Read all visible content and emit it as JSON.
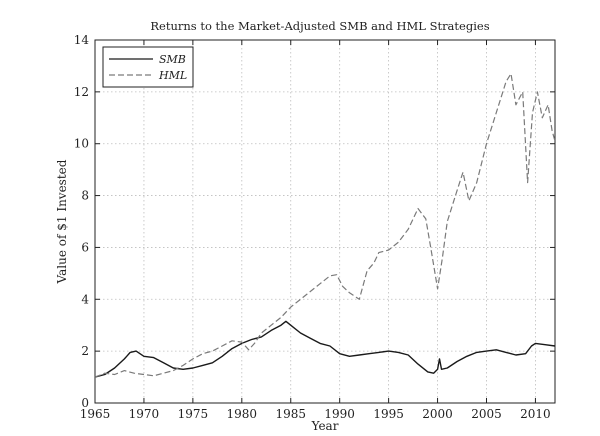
{
  "chart_data": {
    "type": "line",
    "title": "Returns to the Market-Adjusted SMB and HML Strategies",
    "xlabel": "Year",
    "ylabel": "Value of $1 Invested",
    "xlim": [
      1965,
      2012
    ],
    "ylim": [
      0,
      14
    ],
    "xticks": [
      1965,
      1970,
      1975,
      1980,
      1985,
      1990,
      1995,
      2000,
      2005,
      2010
    ],
    "yticks": [
      0,
      2,
      4,
      6,
      8,
      10,
      12,
      14
    ],
    "grid": true,
    "legend_position": "top-left",
    "series": [
      {
        "name": "SMB",
        "style": "solid",
        "color": "#1a1a1a",
        "points": [
          [
            1965.0,
            1.0
          ],
          [
            1966.0,
            1.1
          ],
          [
            1967.0,
            1.35
          ],
          [
            1968.0,
            1.7
          ],
          [
            1968.6,
            1.95
          ],
          [
            1969.2,
            2.0
          ],
          [
            1970.0,
            1.8
          ],
          [
            1971.0,
            1.75
          ],
          [
            1972.0,
            1.55
          ],
          [
            1973.0,
            1.35
          ],
          [
            1974.0,
            1.3
          ],
          [
            1975.0,
            1.35
          ],
          [
            1976.0,
            1.45
          ],
          [
            1977.0,
            1.55
          ],
          [
            1978.0,
            1.8
          ],
          [
            1979.0,
            2.1
          ],
          [
            1980.0,
            2.3
          ],
          [
            1981.0,
            2.45
          ],
          [
            1982.0,
            2.55
          ],
          [
            1983.0,
            2.8
          ],
          [
            1984.0,
            3.0
          ],
          [
            1984.5,
            3.15
          ],
          [
            1985.0,
            3.0
          ],
          [
            1986.0,
            2.7
          ],
          [
            1987.0,
            2.5
          ],
          [
            1988.0,
            2.3
          ],
          [
            1989.0,
            2.2
          ],
          [
            1990.0,
            1.9
          ],
          [
            1991.0,
            1.8
          ],
          [
            1992.0,
            1.85
          ],
          [
            1993.0,
            1.9
          ],
          [
            1994.0,
            1.95
          ],
          [
            1995.0,
            2.0
          ],
          [
            1996.0,
            1.95
          ],
          [
            1997.0,
            1.85
          ],
          [
            1998.0,
            1.5
          ],
          [
            1999.0,
            1.2
          ],
          [
            1999.6,
            1.15
          ],
          [
            2000.0,
            1.3
          ],
          [
            2000.2,
            1.7
          ],
          [
            2000.4,
            1.3
          ],
          [
            2001.0,
            1.35
          ],
          [
            2002.0,
            1.6
          ],
          [
            2003.0,
            1.8
          ],
          [
            2004.0,
            1.95
          ],
          [
            2005.0,
            2.0
          ],
          [
            2006.0,
            2.05
          ],
          [
            2007.0,
            1.95
          ],
          [
            2008.0,
            1.85
          ],
          [
            2009.0,
            1.9
          ],
          [
            2009.6,
            2.2
          ],
          [
            2010.0,
            2.3
          ],
          [
            2011.0,
            2.25
          ],
          [
            2012.0,
            2.2
          ]
        ]
      },
      {
        "name": "HML",
        "style": "dashed",
        "color": "#7a7a7a",
        "points": [
          [
            1965.0,
            1.0
          ],
          [
            1966.0,
            1.15
          ],
          [
            1967.0,
            1.1
          ],
          [
            1968.0,
            1.25
          ],
          [
            1969.0,
            1.15
          ],
          [
            1970.0,
            1.1
          ],
          [
            1971.0,
            1.05
          ],
          [
            1972.0,
            1.15
          ],
          [
            1973.0,
            1.25
          ],
          [
            1974.0,
            1.45
          ],
          [
            1975.0,
            1.7
          ],
          [
            1976.0,
            1.9
          ],
          [
            1977.0,
            2.0
          ],
          [
            1978.0,
            2.2
          ],
          [
            1979.0,
            2.4
          ],
          [
            1980.0,
            2.35
          ],
          [
            1980.7,
            2.05
          ],
          [
            1981.3,
            2.3
          ],
          [
            1982.0,
            2.7
          ],
          [
            1983.0,
            3.0
          ],
          [
            1984.0,
            3.3
          ],
          [
            1985.0,
            3.7
          ],
          [
            1986.0,
            4.0
          ],
          [
            1987.0,
            4.3
          ],
          [
            1988.0,
            4.6
          ],
          [
            1989.0,
            4.9
          ],
          [
            1989.7,
            4.95
          ],
          [
            1990.3,
            4.5
          ],
          [
            1991.0,
            4.25
          ],
          [
            1992.0,
            4.0
          ],
          [
            1992.8,
            5.1
          ],
          [
            1993.5,
            5.4
          ],
          [
            1994.0,
            5.8
          ],
          [
            1995.0,
            5.9
          ],
          [
            1996.0,
            6.2
          ],
          [
            1997.0,
            6.7
          ],
          [
            1998.0,
            7.5
          ],
          [
            1998.8,
            7.1
          ],
          [
            1999.3,
            6.0
          ],
          [
            2000.0,
            4.4
          ],
          [
            2000.5,
            5.6
          ],
          [
            2001.0,
            7.0
          ],
          [
            2002.0,
            8.2
          ],
          [
            2002.6,
            8.9
          ],
          [
            2003.2,
            7.8
          ],
          [
            2004.0,
            8.5
          ],
          [
            2005.0,
            10.0
          ],
          [
            2006.0,
            11.2
          ],
          [
            2007.0,
            12.4
          ],
          [
            2007.5,
            12.7
          ],
          [
            2008.0,
            11.5
          ],
          [
            2008.7,
            12.0
          ],
          [
            2009.2,
            8.5
          ],
          [
            2009.7,
            11.2
          ],
          [
            2010.2,
            12.0
          ],
          [
            2010.7,
            11.0
          ],
          [
            2011.3,
            11.5
          ],
          [
            2011.7,
            10.5
          ],
          [
            2012.0,
            10.1
          ]
        ]
      }
    ]
  }
}
